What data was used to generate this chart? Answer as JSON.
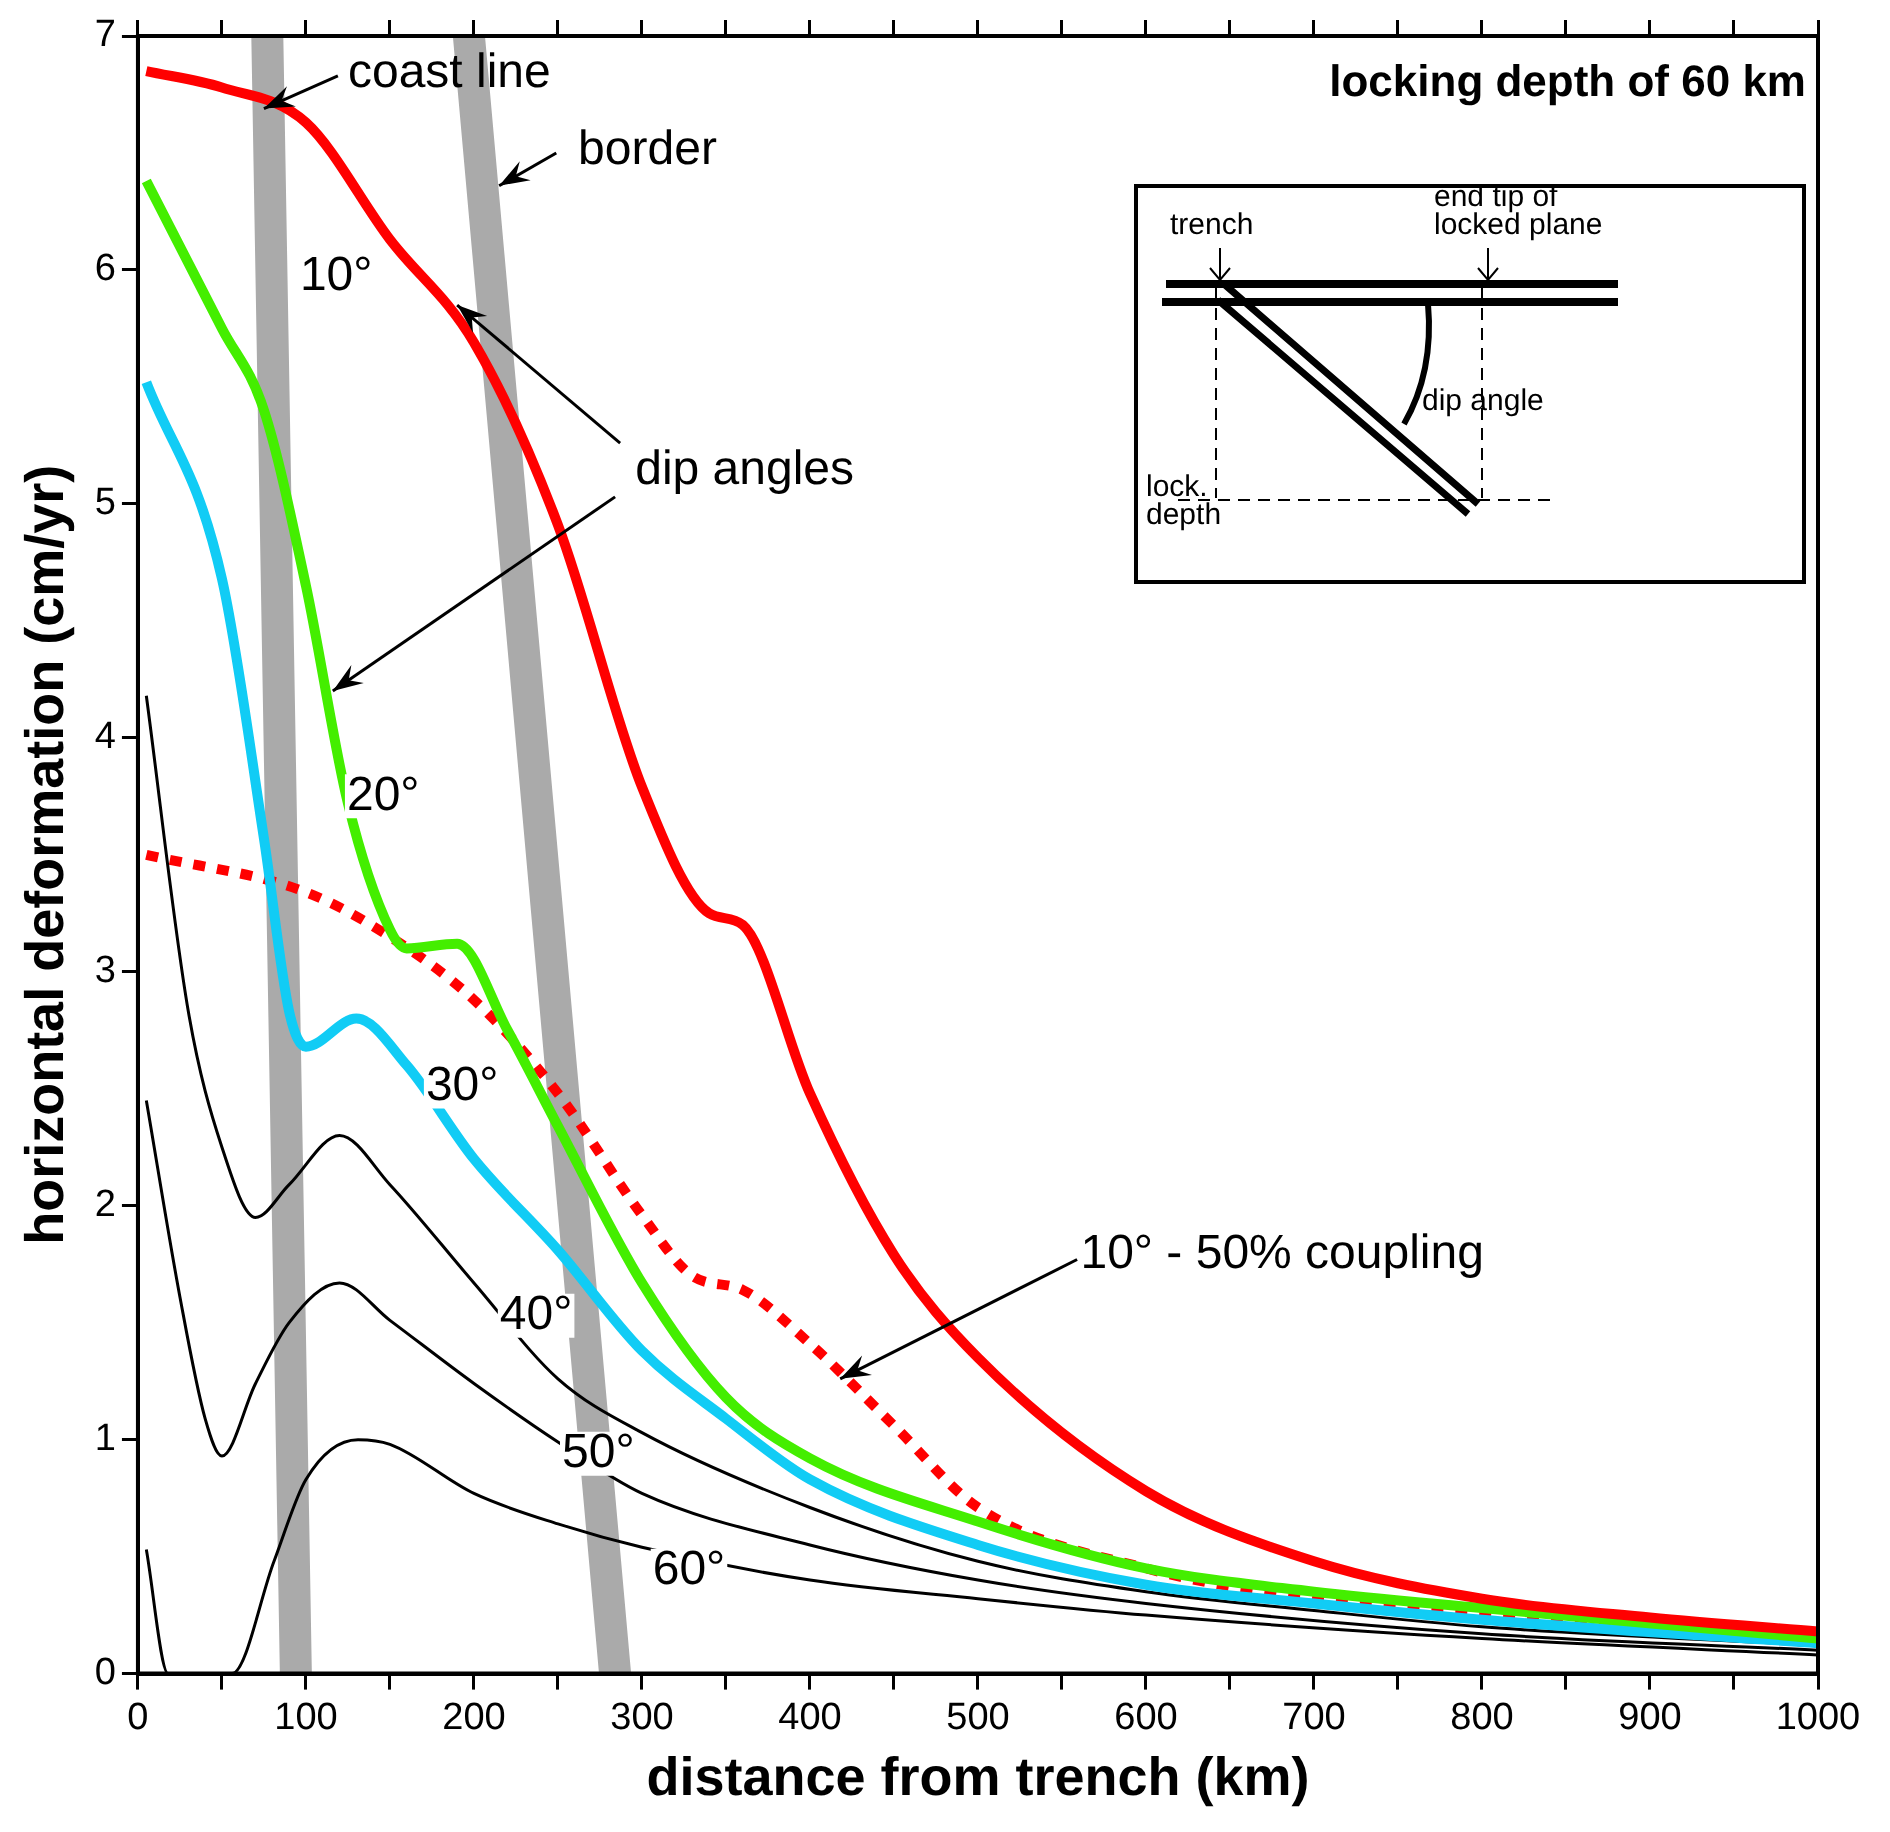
{
  "chart_data": {
    "type": "line",
    "title": "locking depth of 60 km",
    "xlabel": "distance from trench (km)",
    "ylabel": "horizontal deformation (cm/yr)",
    "xlim": [
      0,
      1000
    ],
    "ylim": [
      0,
      7
    ],
    "xticks": [
      0,
      {
        "value": 50,
        "label": null
      },
      100,
      {
        "value": 150,
        "label": null
      },
      200,
      {
        "value": 250,
        "label": null
      },
      300,
      {
        "value": 350,
        "label": null
      },
      400,
      {
        "value": 450,
        "label": null
      },
      500,
      {
        "value": 550,
        "label": null
      },
      600,
      {
        "value": 650,
        "label": null
      },
      700,
      {
        "value": 750,
        "label": null
      },
      800,
      {
        "value": 850,
        "label": null
      },
      900,
      {
        "value": 950,
        "label": null
      },
      1000
    ],
    "yticks": [
      0,
      1,
      2,
      3,
      4,
      5,
      6,
      7
    ],
    "grid": false,
    "legend": false,
    "marker": "none",
    "line_style": "solid",
    "annotations": [
      {
        "text": "dip angles",
        "x": 190,
        "y": 5.85
      },
      "trench",
      "end tip of locked plane",
      "dip angle",
      "lock. depth",
      {
        "text": "coast line",
        "x": 75,
        "y": 6.69
      },
      {
        "text": "border",
        "x": 215,
        "y": 6.36
      },
      {
        "text": "10° - 50% coupling",
        "x": 418,
        "y": 1.26
      }
    ],
    "series": [
      {
        "name": "10°",
        "color": "#ff0000",
        "x": [
          5,
          50,
          100,
          150,
          200,
          250,
          300,
          340,
          360,
          400,
          450,
          500,
          600,
          700,
          800,
          900,
          1000
        ],
        "values": [
          6.85,
          6.78,
          6.63,
          6.13,
          5.69,
          4.91,
          3.79,
          3.25,
          3.2,
          2.48,
          1.79,
          1.35,
          0.78,
          0.48,
          0.32,
          0.24,
          0.18
        ]
      },
      {
        "name": "20°",
        "color": "#44ee00",
        "x": [
          5,
          50,
          75,
          100,
          125,
          150,
          160,
          190,
          220,
          250,
          300,
          350,
          400,
          500,
          600,
          700,
          800,
          1000
        ],
        "values": [
          6.38,
          5.75,
          5.4,
          4.65,
          3.72,
          3.18,
          3.1,
          3.12,
          2.75,
          2.34,
          1.67,
          1.18,
          0.92,
          0.65,
          0.45,
          0.35,
          0.28,
          0.15
        ]
      },
      {
        "name": "30°",
        "color": "#11ccf5",
        "x": [
          5,
          50,
          75,
          90,
          100,
          130,
          160,
          200,
          250,
          300,
          350,
          400,
          500,
          600,
          700,
          800,
          1000
        ],
        "values": [
          5.52,
          4.68,
          3.57,
          2.83,
          2.68,
          2.8,
          2.6,
          2.2,
          1.81,
          1.38,
          1.09,
          0.83,
          0.55,
          0.38,
          0.3,
          0.23,
          0.13
        ]
      },
      {
        "name": "40°",
        "color": "#000000",
        "x": [
          5,
          30,
          50,
          70,
          90,
          120,
          150,
          200,
          250,
          300,
          400,
          500,
          600,
          700,
          800,
          1000
        ],
        "values": [
          4.18,
          2.83,
          2.25,
          1.95,
          2.09,
          2.3,
          2.09,
          1.67,
          1.26,
          1.03,
          0.71,
          0.48,
          0.35,
          0.27,
          0.2,
          0.12
        ]
      },
      {
        "name": "50°",
        "color": "#000000",
        "x": [
          5,
          25,
          40,
          50,
          70,
          90,
          120,
          150,
          200,
          250,
          300,
          400,
          500,
          600,
          800,
          1000
        ],
        "values": [
          2.45,
          1.61,
          1.09,
          0.93,
          1.24,
          1.5,
          1.67,
          1.51,
          1.24,
          0.99,
          0.77,
          0.55,
          0.4,
          0.3,
          0.17,
          0.1
        ]
      },
      {
        "name": "60°",
        "color": "#000000",
        "x": [
          5,
          18,
          56,
          81,
          100,
          131,
          150,
          200,
          250,
          300,
          400,
          500,
          600,
          800,
          1000
        ],
        "values": [
          0.53,
          0,
          0,
          0.48,
          0.83,
          1.0,
          0.98,
          0.77,
          0.64,
          0.54,
          0.4,
          0.32,
          0.25,
          0.15,
          0.08
        ]
      },
      {
        "color": "#ff0000",
        "line_style": "dotted",
        "x": [
          5,
          100,
          150,
          200,
          250,
          300,
          330,
          360,
          400,
          450,
          500,
          600,
          700,
          800,
          1000
        ],
        "values": [
          3.5,
          3.34,
          3.15,
          2.88,
          2.48,
          1.96,
          1.7,
          1.64,
          1.41,
          1.06,
          0.71,
          0.45,
          0.32,
          0.25,
          0.16
        ]
      },
      {
        "color": "#aaaaaa",
        "x": [
          77,
          94
        ],
        "values": [
          7,
          0
        ]
      },
      {
        "color": "#aaaaaa",
        "x": [
          197,
          284
        ],
        "values": [
          7,
          0
        ]
      }
    ]
  }
}
